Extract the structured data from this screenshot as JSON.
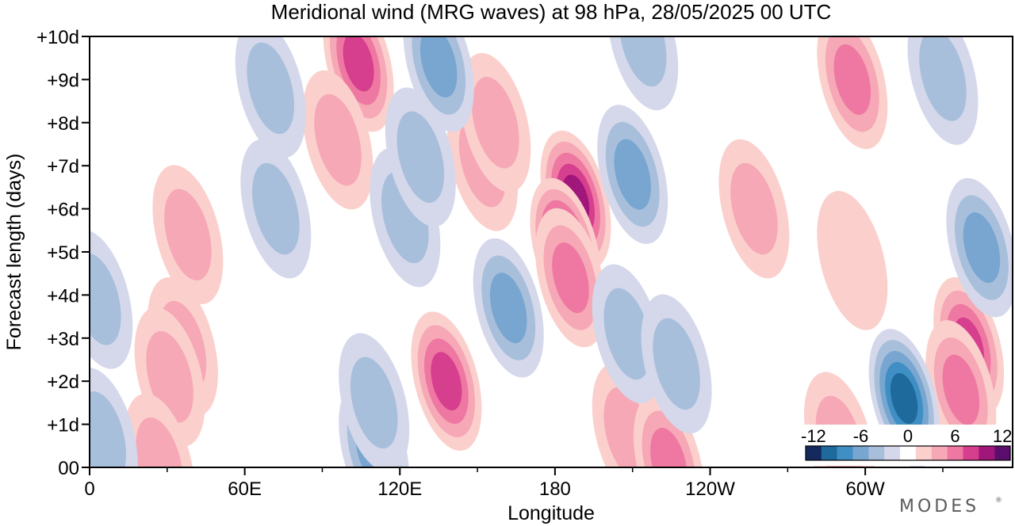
{
  "chart_data": {
    "type": "heatmap",
    "title": "Meridional wind (MRG waves) at  98 hPa,  28/05/2025  00 UTC",
    "xlabel": "Longitude",
    "ylabel": "Forecast length (days)",
    "x_ticks": [
      {
        "lon": 0,
        "label": "0"
      },
      {
        "lon": 60,
        "label": "60E"
      },
      {
        "lon": 120,
        "label": "120E"
      },
      {
        "lon": 180,
        "label": "180"
      },
      {
        "lon": 240,
        "label": "120W"
      },
      {
        "lon": 300,
        "label": "60W"
      }
    ],
    "x_minor_ticks": [
      30,
      90,
      150,
      210,
      270,
      330
    ],
    "xlim": [
      0,
      357
    ],
    "y_ticks": [
      {
        "day": 0,
        "label": "00"
      },
      {
        "day": 1,
        "label": "+1d"
      },
      {
        "day": 2,
        "label": "+2d"
      },
      {
        "day": 3,
        "label": "+3d"
      },
      {
        "day": 4,
        "label": "+4d"
      },
      {
        "day": 5,
        "label": "+5d"
      },
      {
        "day": 6,
        "label": "+6d"
      },
      {
        "day": 7,
        "label": "+7d"
      },
      {
        "day": 8,
        "label": "+8d"
      },
      {
        "day": 9,
        "label": "+9d"
      },
      {
        "day": 10,
        "label": "+10d"
      }
    ],
    "ylim": [
      0,
      10
    ],
    "colorbar": {
      "levels": [
        -12,
        -10,
        -8,
        -6,
        -4,
        -2,
        0,
        2,
        4,
        6,
        8,
        10,
        12
      ],
      "labels": [
        "-12",
        "-6",
        "0",
        "6",
        "12"
      ],
      "colors": [
        "#142a5e",
        "#1f6a9c",
        "#3f8fc4",
        "#78a6d0",
        "#a8bfdc",
        "#d4d8ea",
        "#ffffff",
        "#fbd0cc",
        "#f6a8b6",
        "#ee78a2",
        "#d63f8e",
        "#a1167a",
        "#5c0e6c"
      ]
    },
    "features": [
      {
        "lon": 104,
        "day": 9.4,
        "sign": "pos",
        "peak": 8
      },
      {
        "lon": 96,
        "day": 7.6,
        "sign": "pos",
        "peak": 4
      },
      {
        "lon": 38,
        "day": 5.4,
        "sign": "pos",
        "peak": 4
      },
      {
        "lon": 36,
        "day": 2.8,
        "sign": "pos",
        "peak": 4
      },
      {
        "lon": 31,
        "day": 2.1,
        "sign": "pos",
        "peak": 4
      },
      {
        "lon": 138,
        "day": 2.0,
        "sign": "pos",
        "peak": 8
      },
      {
        "lon": 152,
        "day": 7.1,
        "sign": "pos",
        "peak": 4
      },
      {
        "lon": 157,
        "day": 8.0,
        "sign": "pos",
        "peak": 4
      },
      {
        "lon": 188,
        "day": 6.2,
        "sign": "pos",
        "peak": 10
      },
      {
        "lon": 184,
        "day": 5.1,
        "sign": "pos",
        "peak": 10
      },
      {
        "lon": 186,
        "day": 4.4,
        "sign": "pos",
        "peak": 6
      },
      {
        "lon": 257,
        "day": 6.0,
        "sign": "pos",
        "peak": 4
      },
      {
        "lon": 295,
        "day": 9.0,
        "sign": "pos",
        "peak": 6
      },
      {
        "lon": 340,
        "day": 2.8,
        "sign": "pos",
        "peak": 8
      },
      {
        "lon": 337,
        "day": 1.8,
        "sign": "pos",
        "peak": 6
      },
      {
        "lon": 295,
        "day": 4.8,
        "sign": "pos",
        "peak": 2
      },
      {
        "lon": 208,
        "day": 0.8,
        "sign": "pos",
        "peak": 4
      },
      {
        "lon": 224,
        "day": 0.1,
        "sign": "pos",
        "peak": 6
      },
      {
        "lon": 27,
        "day": 0.1,
        "sign": "pos",
        "peak": 4
      },
      {
        "lon": 290,
        "day": 0.6,
        "sign": "pos",
        "peak": 4
      },
      {
        "lon": 135,
        "day": 9.4,
        "sign": "neg",
        "peak": 6
      },
      {
        "lon": 122,
        "day": 5.8,
        "sign": "neg",
        "peak": 4
      },
      {
        "lon": 128,
        "day": 7.2,
        "sign": "neg",
        "peak": 4
      },
      {
        "lon": 72,
        "day": 6.0,
        "sign": "neg",
        "peak": 4
      },
      {
        "lon": 70,
        "day": 8.8,
        "sign": "neg",
        "peak": 4
      },
      {
        "lon": 162,
        "day": 3.7,
        "sign": "neg",
        "peak": 6
      },
      {
        "lon": 210,
        "day": 6.8,
        "sign": "neg",
        "peak": 6
      },
      {
        "lon": 208,
        "day": 3.1,
        "sign": "neg",
        "peak": 4
      },
      {
        "lon": 227,
        "day": 2.4,
        "sign": "neg",
        "peak": 4
      },
      {
        "lon": 315,
        "day": 1.6,
        "sign": "neg",
        "peak": 10
      },
      {
        "lon": 345,
        "day": 5.1,
        "sign": "neg",
        "peak": 6
      },
      {
        "lon": 3,
        "day": 3.9,
        "sign": "neg",
        "peak": 4
      },
      {
        "lon": 5,
        "day": 0.7,
        "sign": "neg",
        "peak": 4
      },
      {
        "lon": 110,
        "day": 0.4,
        "sign": "neg",
        "peak": 6
      },
      {
        "lon": 110,
        "day": 1.5,
        "sign": "neg",
        "peak": 4
      },
      {
        "lon": 330,
        "day": 9.1,
        "sign": "neg",
        "peak": 4
      },
      {
        "lon": 214,
        "day": 9.9,
        "sign": "neg",
        "peak": 4
      }
    ]
  },
  "branding": {
    "text": "MODES",
    "mark": "®"
  }
}
